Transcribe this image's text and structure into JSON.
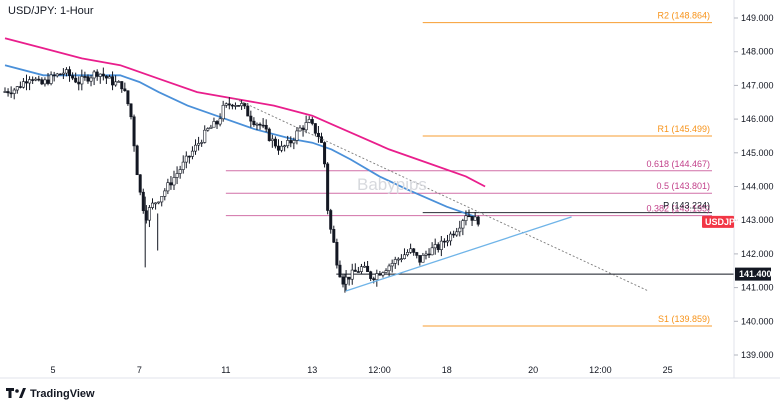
{
  "chart_data": {
    "type": "candlestick",
    "title": "USD/JPY: 1-Hour",
    "watermark": "Babypips",
    "brand": "TradingView",
    "ylim": [
      138.6,
      149.3
    ],
    "y_ticks": [
      "149.000",
      "148.000",
      "147.000",
      "146.000",
      "145.000",
      "144.000",
      "143.000",
      "142.000",
      "141.000",
      "140.000",
      "139.000"
    ],
    "x_ticks": [
      "5",
      "7",
      "11",
      "13",
      "12:00",
      "18",
      "20",
      "12:00",
      "25"
    ],
    "x_tick_positions": [
      3,
      12,
      21,
      30,
      37,
      44,
      53,
      60,
      67
    ],
    "x_span": [
      -2.0,
      73.5
    ],
    "ohlc_anchors": [
      [
        -2.0,
        146.8
      ],
      [
        -0.5,
        146.9
      ],
      [
        1,
        147.3
      ],
      [
        2,
        147.0
      ],
      [
        3,
        147.2
      ],
      [
        4.5,
        147.4
      ],
      [
        6,
        147.1
      ],
      [
        8,
        147.4
      ],
      [
        9.5,
        147.1
      ],
      [
        10.5,
        147.0
      ],
      [
        11,
        146.6
      ],
      [
        11.5,
        146.0
      ],
      [
        12,
        144.6
      ],
      [
        12.5,
        143.6
      ],
      [
        13,
        143.1
      ],
      [
        13.5,
        143.4
      ],
      [
        14.5,
        143.7
      ],
      [
        15.5,
        144.1
      ],
      [
        16.5,
        144.5
      ],
      [
        17.5,
        144.9
      ],
      [
        18.5,
        145.3
      ],
      [
        19.5,
        145.7
      ],
      [
        20.5,
        145.9
      ],
      [
        21,
        146.3
      ],
      [
        22,
        146.5
      ],
      [
        23,
        146.4
      ],
      [
        24,
        146.0
      ],
      [
        25,
        145.8
      ],
      [
        26,
        145.4
      ],
      [
        27,
        145.1
      ],
      [
        28,
        145.3
      ],
      [
        29,
        145.7
      ],
      [
        30,
        145.9
      ],
      [
        31,
        145.5
      ],
      [
        31.5,
        145.1
      ],
      [
        32,
        143.0
      ],
      [
        32.5,
        142.4
      ],
      [
        33,
        141.6
      ],
      [
        33.5,
        141.2
      ],
      [
        34.5,
        141.4
      ],
      [
        35.5,
        141.6
      ],
      [
        36.5,
        141.3
      ],
      [
        37.5,
        141.5
      ],
      [
        38.5,
        141.7
      ],
      [
        39.5,
        141.9
      ],
      [
        40.5,
        142.1
      ],
      [
        41.5,
        141.8
      ],
      [
        42.5,
        142.1
      ],
      [
        43.5,
        142.2
      ],
      [
        44.5,
        142.5
      ],
      [
        45.5,
        142.8
      ],
      [
        46.3,
        143.2
      ],
      [
        46.9,
        143.1
      ],
      [
        47.3,
        143.0
      ]
    ],
    "moving_averages": [
      {
        "color": "#e91e8c",
        "points": [
          [
            -2.0,
            148.4
          ],
          [
            2,
            148.1
          ],
          [
            6,
            147.8
          ],
          [
            10,
            147.6
          ],
          [
            14,
            147.2
          ],
          [
            18,
            146.8
          ],
          [
            22,
            146.6
          ],
          [
            26,
            146.4
          ],
          [
            30,
            146.1
          ],
          [
            34,
            145.6
          ],
          [
            38,
            145.1
          ],
          [
            42,
            144.7
          ],
          [
            46,
            144.3
          ],
          [
            48,
            144.0
          ]
        ]
      },
      {
        "color": "#4a90d9",
        "points": [
          [
            -2.0,
            147.6
          ],
          [
            2,
            147.3
          ],
          [
            6,
            147.3
          ],
          [
            10,
            147.3
          ],
          [
            12,
            147.1
          ],
          [
            14,
            146.8
          ],
          [
            17,
            146.4
          ],
          [
            20,
            146.1
          ],
          [
            24,
            145.7
          ],
          [
            28,
            145.4
          ],
          [
            30,
            145.3
          ],
          [
            32,
            145.1
          ],
          [
            34,
            144.8
          ],
          [
            37,
            144.3
          ],
          [
            40,
            143.9
          ],
          [
            44,
            143.4
          ],
          [
            47,
            143.1
          ]
        ]
      }
    ],
    "trendlines": [
      {
        "from": [
          22,
          146.6
        ],
        "to": [
          65,
          140.9
        ],
        "color": "#7a7a7a",
        "dashed": true,
        "width": 0.9
      },
      {
        "from": [
          33.5,
          140.9
        ],
        "to": [
          57,
          143.1
        ],
        "color": "#6fb4e8",
        "dashed": false,
        "width": 1.3
      }
    ],
    "levels": [
      {
        "label": "R2 (148.864)",
        "value": 148.864,
        "x_start": 41.5,
        "color": "#f7931a",
        "class": "lvl-label-orange"
      },
      {
        "label": "R1 (145.499)",
        "value": 145.499,
        "x_start": 41.5,
        "color": "#f7931a",
        "class": "lvl-label-orange"
      },
      {
        "label": "0.618 (144.467)",
        "value": 144.467,
        "x_start": 21,
        "color": "#c2408a",
        "class": "lvl-label-pink"
      },
      {
        "label": "0.5 (143.801)",
        "value": 143.801,
        "x_start": 21,
        "color": "#c2408a",
        "class": "lvl-label-pink"
      },
      {
        "label": "0.382 (143.135)",
        "value": 143.135,
        "x_start": 21,
        "color": "#c2408a",
        "class": "lvl-label-pink"
      },
      {
        "label": "P (143.224)",
        "value": 143.224,
        "x_start": 41.5,
        "color": "#131722",
        "class": "lvl-label-dark"
      },
      {
        "label": "S1 (139.859)",
        "value": 139.859,
        "x_start": 41.5,
        "color": "#f7931a",
        "class": "lvl-label-orange"
      }
    ],
    "horizontal_line": {
      "value": 141.4,
      "x_start": 32.5,
      "color": "#131722",
      "label": "141.400"
    },
    "price_tag": {
      "label": "USDJPY",
      "value": 142.95,
      "color": "#f23645"
    },
    "colors": {
      "up": "#26a69a",
      "down": "#131722",
      "candle": "#131722"
    }
  }
}
